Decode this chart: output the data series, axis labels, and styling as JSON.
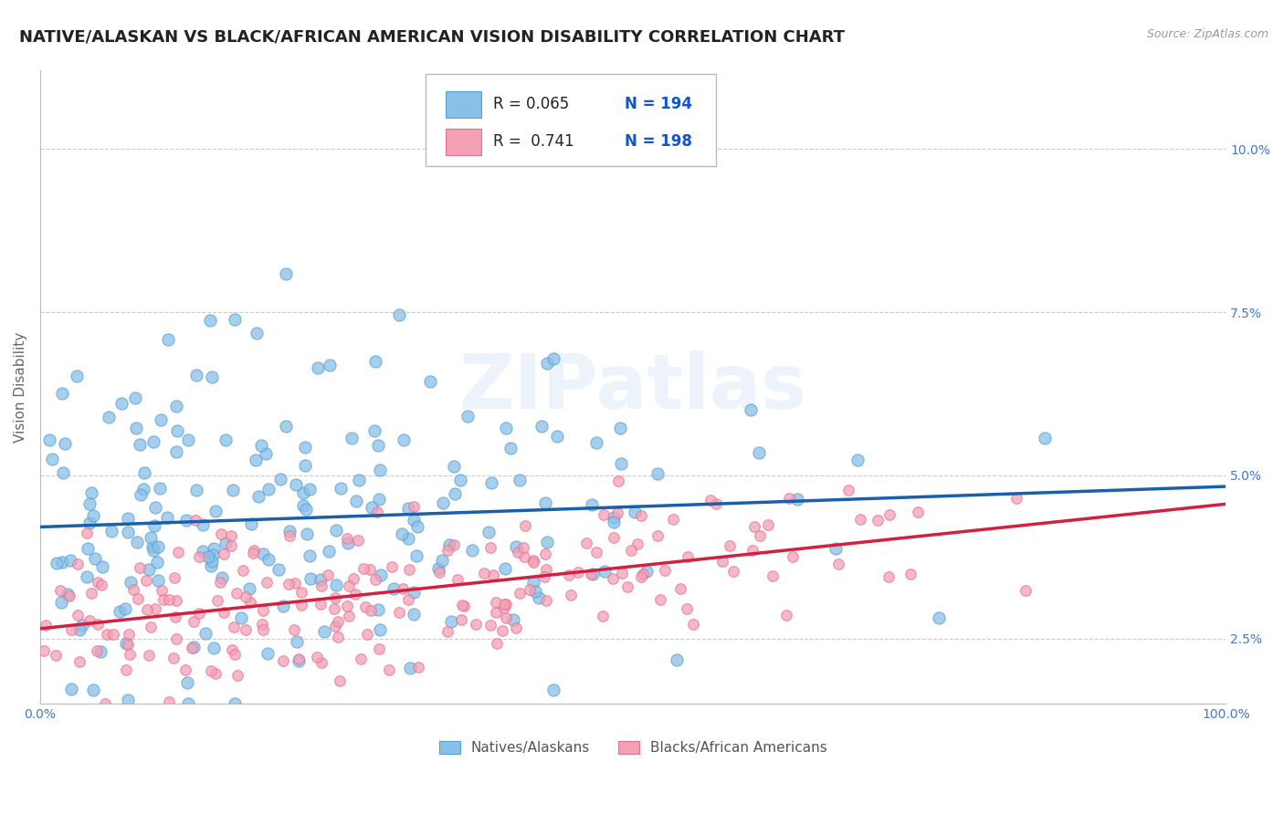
{
  "title": "NATIVE/ALASKAN VS BLACK/AFRICAN AMERICAN VISION DISABILITY CORRELATION CHART",
  "source": "Source: ZipAtlas.com",
  "ylabel": "Vision Disability",
  "yticks": [
    0.025,
    0.05,
    0.075,
    0.1
  ],
  "ytick_labels": [
    "2.5%",
    "5.0%",
    "7.5%",
    "10.0%"
  ],
  "xlim": [
    0.0,
    1.0
  ],
  "ylim": [
    0.015,
    0.112
  ],
  "blue_color": "#89C0E8",
  "pink_color": "#F4A0B5",
  "blue_edge_color": "#5A9FD4",
  "pink_edge_color": "#E87090",
  "blue_line_color": "#1A5FAA",
  "pink_line_color": "#D42040",
  "legend_R1": "R = 0.065",
  "legend_N1": "N = 194",
  "legend_R2": "R =  0.741",
  "legend_N2": "N = 198",
  "label1": "Natives/Alaskans",
  "label2": "Blacks/African Americans",
  "watermark": "ZIPatlas",
  "N_blue": 194,
  "N_pink": 198,
  "background_color": "#FFFFFF",
  "grid_color": "#CCCCCC",
  "title_color": "#222222",
  "title_fontsize": 13,
  "axis_label_fontsize": 11,
  "tick_fontsize": 10,
  "tick_color": "#4477CC",
  "source_color": "#999999",
  "legend_text_color": "#222222",
  "legend_N_color": "#2244BB",
  "R_value_color": "#1155CC"
}
